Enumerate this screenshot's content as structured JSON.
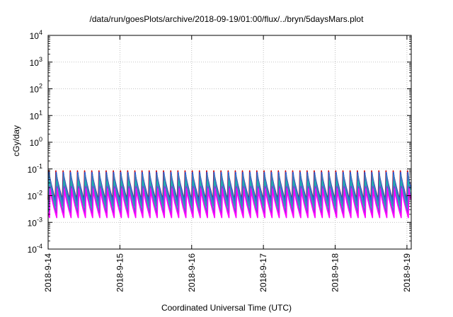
{
  "chart_data": {
    "type": "line",
    "title": "/data/run/goesPlots/archive/2018-09-19/01:00/flux/../bryn/5daysMars.plot",
    "xlabel": "Coordinated Universal Time (UTC)",
    "ylabel": "cGy/day",
    "yscale": "log",
    "ylim_exponents": [
      -4,
      4
    ],
    "y_ticks": [
      {
        "base": "10",
        "exp": "-4"
      },
      {
        "base": "10",
        "exp": "-3"
      },
      {
        "base": "10",
        "exp": "-2"
      },
      {
        "base": "10",
        "exp": "-1"
      },
      {
        "base": "10",
        "exp": "0"
      },
      {
        "base": "10",
        "exp": "1"
      },
      {
        "base": "10",
        "exp": "2"
      },
      {
        "base": "10",
        "exp": "3"
      },
      {
        "base": "10",
        "exp": "4"
      }
    ],
    "x_ticks": [
      "2018-9-14",
      "2018-9-15",
      "2018-9-16",
      "2018-9-17",
      "2018-9-18",
      "2018-9-19"
    ],
    "xlim_days": [
      0,
      5.06
    ],
    "grid": true,
    "legend": "none",
    "sawtooth_period_days": 0.1,
    "series": [
      {
        "color": "#cc0000",
        "peak": 0.085,
        "trough": 0.007
      },
      {
        "color": "#2255dd",
        "peak": 0.075,
        "trough": 0.006
      },
      {
        "color": "#3a7fbf",
        "peak": 0.06,
        "trough": 0.004
      },
      {
        "color": "#20b2aa",
        "peak": 0.035,
        "trough": 0.0025
      },
      {
        "color": "#8a2be2",
        "peak": 0.022,
        "trough": 0.0018
      },
      {
        "color": "#ff00ff",
        "peak": 0.018,
        "trough": 0.0015
      }
    ]
  }
}
